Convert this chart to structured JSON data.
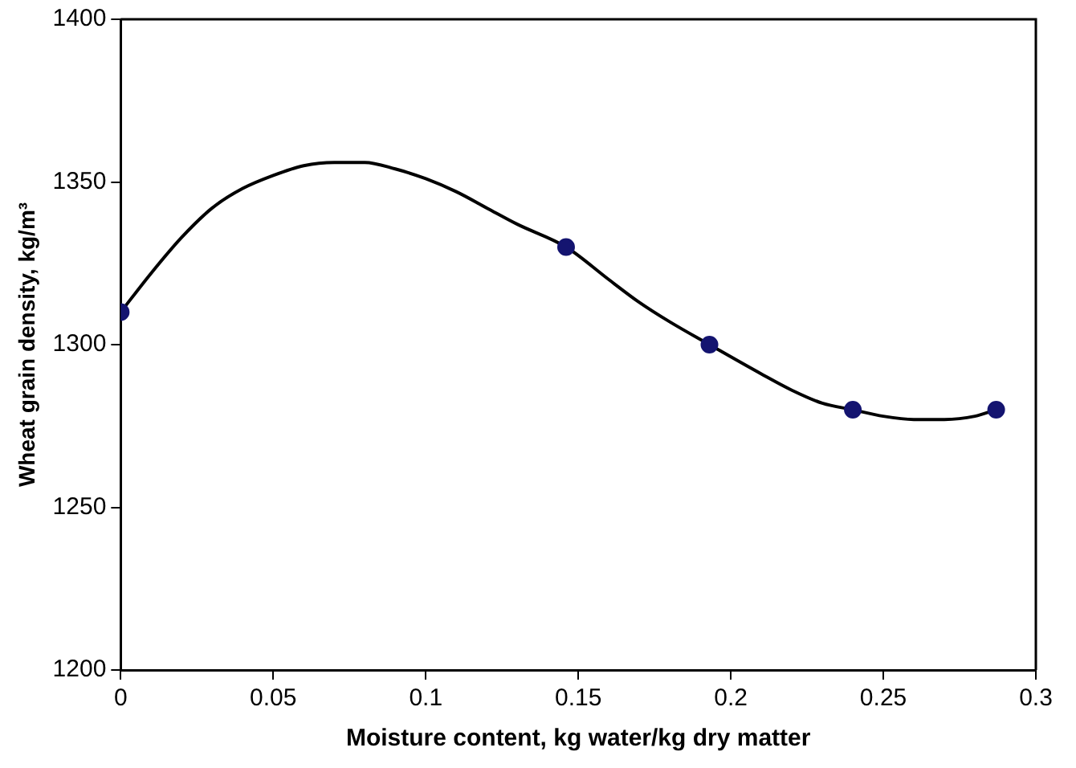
{
  "chart_data": {
    "type": "scatter",
    "xlabel": "Moisture content, kg water/kg dry matter",
    "ylabel": "Wheat grain density, kg/m³",
    "xlim": [
      0,
      0.3
    ],
    "xticks": [
      0,
      0.05,
      0.1,
      0.15,
      0.2,
      0.25,
      0.3
    ],
    "ylim": [
      1200,
      1400
    ],
    "yticks": [
      1200,
      1250,
      1300,
      1350,
      1400
    ],
    "grid": false,
    "legend": false,
    "marker": "circle",
    "series": [
      {
        "type": "scatter",
        "color": "#141470",
        "x": [
          0,
          0.146,
          0.193,
          0.24,
          0.287
        ],
        "values": [
          1310,
          1330,
          1300,
          1280,
          1280
        ]
      },
      {
        "type": "line",
        "color": "#000000",
        "marker": "none",
        "line_style": "solid",
        "x": [
          0,
          0.01,
          0.02,
          0.03,
          0.04,
          0.05,
          0.06,
          0.07,
          0.08,
          0.09,
          0.1,
          0.11,
          0.12,
          0.13,
          0.146,
          0.16,
          0.17,
          0.18,
          0.193,
          0.21,
          0.22,
          0.23,
          0.24,
          0.25,
          0.26,
          0.27,
          0.28,
          0.287
        ],
        "values": [
          1310,
          1322,
          1333,
          1342,
          1348,
          1352,
          1355,
          1356,
          1356,
          1354,
          1351,
          1347,
          1342,
          1337,
          1330,
          1320,
          1313,
          1307,
          1300,
          1291,
          1286,
          1282,
          1280,
          1278,
          1277,
          1277,
          1278,
          1280
        ]
      }
    ]
  }
}
